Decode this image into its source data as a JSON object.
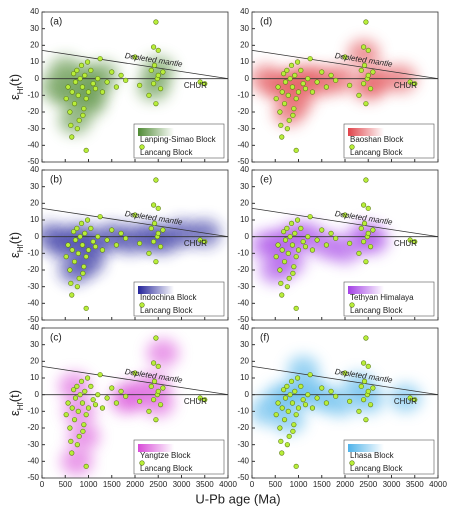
{
  "chart_data": {
    "type": "scatter",
    "x_label": "U-Pb age (Ma)",
    "y_label": {
      "symbol": "ε",
      "subscript": "Hf",
      "suffix": "(t)"
    },
    "xlim": [
      0,
      4000
    ],
    "xticks": [
      0,
      500,
      1000,
      1500,
      2000,
      2500,
      3000,
      3500,
      4000
    ],
    "ylim": [
      -50,
      40
    ],
    "yticks": [
      -50,
      -40,
      -30,
      -20,
      -10,
      0,
      10,
      20,
      30,
      40
    ],
    "depleted_mantle": {
      "label": "Depleted mantle",
      "x": [
        0,
        4000
      ],
      "y": [
        17,
        0
      ]
    },
    "chur": {
      "label": "CHUR",
      "y": 0
    },
    "points": {
      "name": "Lancang Block",
      "color": "#b8ee3a",
      "x": [
        520,
        560,
        600,
        620,
        650,
        680,
        700,
        720,
        750,
        780,
        800,
        820,
        850,
        870,
        900,
        920,
        950,
        980,
        1000,
        1050,
        1100,
        1150,
        1200,
        1250,
        1300,
        1400,
        1500,
        1600,
        1700,
        1800,
        2000,
        2100,
        2300,
        2350,
        2400,
        2420,
        2450,
        2480,
        2500,
        2550,
        2600,
        2450,
        2400,
        2500,
        3400,
        3500,
        950,
        640,
        760,
        880
      ],
      "y": [
        -12,
        -5,
        -20,
        -28,
        -8,
        3,
        -15,
        -2,
        5,
        -10,
        -25,
        0,
        8,
        -5,
        -18,
        2,
        -12,
        10,
        -8,
        5,
        -3,
        -6,
        0,
        12,
        -8,
        -2,
        4,
        -5,
        2,
        -1,
        13,
        -4,
        -10,
        5,
        -3,
        8,
        -15,
        0,
        2,
        -6,
        4,
        34,
        19,
        17,
        -2,
        -3,
        -43,
        -35,
        -30,
        -22
      ]
    },
    "panels": [
      {
        "label": "(a)",
        "name": "Lanping-Simao Block",
        "color": "#4f8a34",
        "cloud": {
          "x": [
            300,
            600,
            900,
            1100,
            1300,
            700,
            1000,
            2400,
            2500,
            500
          ],
          "y": [
            -5,
            -10,
            0,
            -8,
            2,
            -25,
            -15,
            -5,
            5,
            5
          ]
        }
      },
      {
        "label": "(b)",
        "name": "Indochina Block",
        "color": "#23239a",
        "cloud": {
          "x": [
            200,
            500,
            800,
            1100,
            1500,
            1900,
            2300,
            2600,
            3000,
            3500,
            700,
            1000
          ],
          "y": [
            0,
            -5,
            0,
            -5,
            0,
            -2,
            0,
            -2,
            2,
            2,
            -20,
            -15
          ]
        }
      },
      {
        "label": "(c)",
        "name": "Yangtze Block",
        "color": "#d84ad8",
        "cloud": {
          "x": [
            700,
            800,
            900,
            1800,
            2000,
            2400,
            2500,
            2600,
            750
          ],
          "y": [
            5,
            -10,
            -25,
            -3,
            0,
            5,
            -5,
            25,
            -40
          ]
        }
      },
      {
        "label": "(d)",
        "name": "Baoshan Block",
        "color": "#e0434a",
        "cloud": {
          "x": [
            300,
            600,
            900,
            1200,
            1500,
            1900,
            2400,
            2500,
            2700,
            3200,
            800,
            1000
          ],
          "y": [
            0,
            -5,
            -2,
            0,
            -2,
            0,
            15,
            -5,
            0,
            0,
            -20,
            -12
          ]
        }
      },
      {
        "label": "(e)",
        "name": "Tethyan Himalaya",
        "color": "#a33fe6",
        "cloud": {
          "x": [
            300,
            600,
            900,
            1200,
            1600,
            2000,
            2400,
            2600,
            500,
            800
          ],
          "y": [
            -5,
            -5,
            0,
            0,
            -5,
            -8,
            0,
            -2,
            -20,
            -15
          ]
        }
      },
      {
        "label": "(f)",
        "name": "Lhasa Block",
        "color": "#4fb3ea",
        "cloud": {
          "x": [
            300,
            600,
            900,
            1200,
            1500,
            1900,
            2300,
            2500,
            3300,
            800,
            1100
          ],
          "y": [
            -10,
            -2,
            0,
            3,
            -2,
            -5,
            5,
            -3,
            -2,
            -15,
            15
          ]
        }
      }
    ]
  }
}
